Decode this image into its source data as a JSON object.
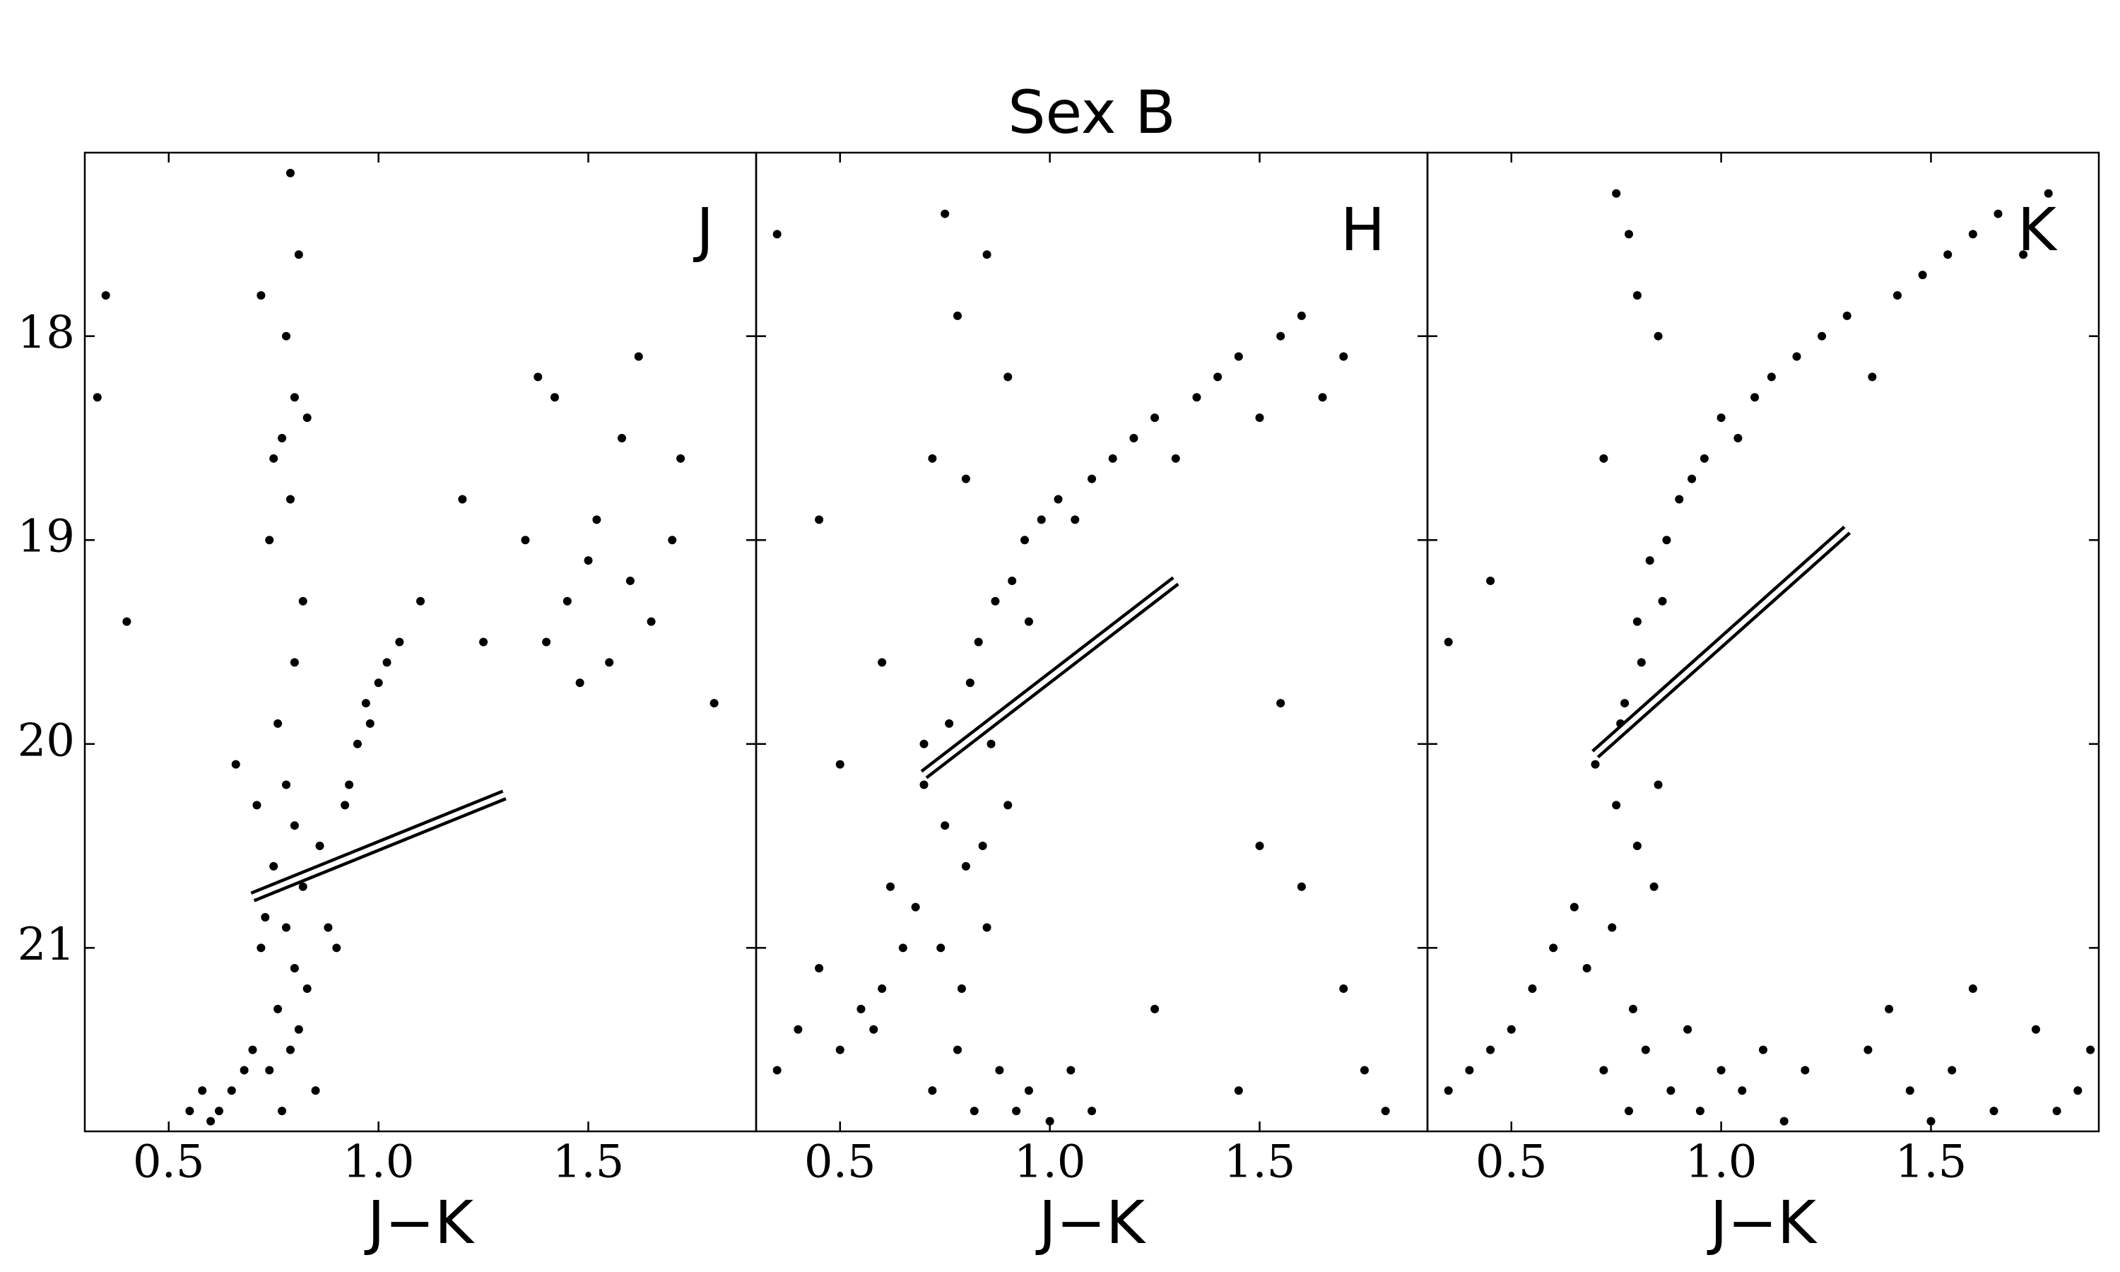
{
  "title": "Sex B",
  "chart_data": [
    {
      "type": "scatter",
      "label": "J",
      "xlabel": "J−K",
      "series": [
        {
          "color": "#000000",
          "x": [
            0.72,
            0.78,
            0.8,
            0.76,
            0.83,
            0.79,
            0.74,
            0.81,
            0.77,
            0.85,
            0.7,
            0.68,
            0.65,
            0.62,
            0.6,
            0.58,
            0.55,
            0.73,
            0.88,
            0.9,
            0.82,
            0.75,
            0.8,
            0.86,
            0.71,
            0.66,
            0.93,
            0.95,
            0.98,
            1.0,
            1.02,
            1.05,
            0.97,
            0.92,
            0.78,
            0.76,
            0.8,
            0.82,
            0.74,
            0.79,
            0.77,
            0.8,
            0.75,
            0.83,
            0.78,
            0.72,
            0.81,
            0.79,
            1.35,
            1.4,
            1.45,
            1.5,
            1.55,
            1.6,
            1.65,
            1.7,
            1.48,
            1.52,
            1.42,
            1.38,
            1.58,
            1.62,
            1.72,
            1.8,
            1.25,
            1.2,
            1.1,
            0.35,
            0.4,
            0.33
          ],
          "values": [
            21.0,
            20.9,
            21.1,
            21.3,
            21.2,
            21.5,
            21.6,
            21.4,
            21.8,
            21.7,
            21.5,
            21.6,
            21.7,
            21.8,
            21.85,
            21.7,
            21.8,
            20.85,
            20.9,
            21.0,
            20.7,
            20.6,
            20.4,
            20.5,
            20.3,
            20.1,
            20.2,
            20.0,
            19.9,
            19.7,
            19.6,
            19.5,
            19.8,
            20.3,
            20.2,
            19.9,
            19.6,
            19.3,
            19.0,
            18.8,
            18.5,
            18.3,
            18.6,
            18.4,
            18.0,
            17.8,
            17.6,
            17.2,
            19.0,
            19.5,
            19.3,
            19.1,
            19.6,
            19.2,
            19.4,
            19.0,
            19.7,
            18.9,
            18.3,
            18.2,
            18.5,
            18.1,
            18.6,
            19.8,
            19.5,
            18.8,
            19.3,
            17.8,
            19.4,
            18.3
          ]
        }
      ],
      "tip_line": {
        "x": [
          0.7,
          1.3
        ],
        "y": [
          20.75,
          20.25
        ]
      },
      "xlim": [
        0.3,
        1.9
      ],
      "ylim": [
        21.9,
        17.1
      ],
      "xticks": [
        0.5,
        {
          "value": 1.0,
          "label": "1.0"
        },
        1.5
      ],
      "yticks": [
        18,
        19,
        20,
        21
      ]
    },
    {
      "type": "scatter",
      "label": "H",
      "xlabel": "J−K",
      "series": [
        {
          "color": "#000000",
          "x": [
            0.7,
            0.75,
            0.8,
            0.85,
            0.65,
            0.6,
            0.55,
            0.5,
            0.45,
            0.4,
            0.35,
            0.72,
            0.78,
            0.82,
            0.88,
            0.92,
            0.95,
            1.0,
            1.05,
            1.1,
            0.68,
            0.74,
            0.79,
            0.84,
            0.9,
            0.62,
            0.58,
            0.76,
            0.81,
            0.86,
            0.83,
            0.87,
            0.91,
            0.94,
            0.98,
            1.02,
            1.06,
            1.1,
            1.15,
            1.2,
            1.25,
            1.3,
            1.35,
            1.4,
            1.45,
            1.5,
            1.55,
            1.6,
            1.65,
            1.7,
            0.8,
            0.78,
            0.75,
            0.85,
            0.9,
            0.72,
            0.95,
            1.5,
            1.7,
            1.8,
            1.45,
            1.6,
            1.25,
            0.35,
            0.45,
            1.55,
            1.75,
            0.7,
            0.6,
            0.5
          ],
          "values": [
            20.2,
            20.4,
            20.6,
            20.9,
            21.0,
            21.2,
            21.3,
            21.5,
            21.1,
            21.4,
            21.6,
            21.7,
            21.5,
            21.8,
            21.6,
            21.8,
            21.7,
            21.85,
            21.6,
            21.8,
            20.8,
            21.0,
            21.2,
            20.5,
            20.3,
            20.7,
            21.4,
            19.9,
            19.7,
            20.0,
            19.5,
            19.3,
            19.2,
            19.0,
            18.9,
            18.8,
            18.9,
            18.7,
            18.6,
            18.5,
            18.4,
            18.6,
            18.3,
            18.2,
            18.1,
            18.4,
            18.0,
            17.9,
            18.3,
            18.1,
            18.7,
            17.9,
            17.4,
            17.6,
            18.2,
            18.6,
            19.4,
            20.5,
            21.2,
            21.8,
            21.7,
            20.7,
            21.3,
            17.5,
            18.9,
            19.8,
            21.6,
            20.0,
            19.6,
            20.1
          ]
        }
      ],
      "tip_line": {
        "x": [
          0.7,
          1.3
        ],
        "y": [
          20.15,
          19.2
        ]
      },
      "xlim": [
        0.3,
        1.9
      ],
      "ylim": [
        21.9,
        17.1
      ],
      "xticks": [
        0.5,
        {
          "value": 1.0,
          "label": "1.0"
        },
        1.5
      ],
      "yticks": [
        18,
        19,
        20,
        21
      ]
    },
    {
      "type": "scatter",
      "label": "K",
      "xlabel": "J−K",
      "series": [
        {
          "color": "#000000",
          "x": [
            0.7,
            0.75,
            0.8,
            0.85,
            0.65,
            0.6,
            0.55,
            0.5,
            0.45,
            0.4,
            0.35,
            0.72,
            0.78,
            0.82,
            0.88,
            0.92,
            0.95,
            1.0,
            1.05,
            1.1,
            0.68,
            0.74,
            0.79,
            0.84,
            0.73,
            0.77,
            0.81,
            0.76,
            0.8,
            0.86,
            0.83,
            0.87,
            0.9,
            0.93,
            0.96,
            1.0,
            1.04,
            1.08,
            1.12,
            1.18,
            1.24,
            1.3,
            1.36,
            1.42,
            1.48,
            1.54,
            1.6,
            1.66,
            1.72,
            1.78,
            0.8,
            0.78,
            0.75,
            0.85,
            0.72,
            1.35,
            1.45,
            1.55,
            1.65,
            1.75,
            1.85,
            1.4,
            1.6,
            1.8,
            1.5,
            0.35,
            0.45,
            1.15,
            1.2,
            1.88
          ],
          "values": [
            20.1,
            20.3,
            20.5,
            20.2,
            20.8,
            21.0,
            21.2,
            21.4,
            21.5,
            21.6,
            21.7,
            21.6,
            21.8,
            21.5,
            21.7,
            21.4,
            21.8,
            21.6,
            21.7,
            21.5,
            21.1,
            20.9,
            21.3,
            20.7,
            20.0,
            19.8,
            19.6,
            19.9,
            19.4,
            19.3,
            19.1,
            19.0,
            18.8,
            18.7,
            18.6,
            18.4,
            18.5,
            18.3,
            18.2,
            18.1,
            18.0,
            17.9,
            18.2,
            17.8,
            17.7,
            17.6,
            17.5,
            17.4,
            17.6,
            17.3,
            17.8,
            17.5,
            17.3,
            18.0,
            18.6,
            21.5,
            21.7,
            21.6,
            21.8,
            21.4,
            21.7,
            21.3,
            21.2,
            21.8,
            21.85,
            19.5,
            19.2,
            21.85,
            21.6,
            21.5
          ]
        }
      ],
      "tip_line": {
        "x": [
          0.7,
          1.3
        ],
        "y": [
          20.05,
          18.95
        ]
      },
      "xlim": [
        0.3,
        1.9
      ],
      "ylim": [
        21.9,
        17.1
      ],
      "xticks": [
        0.5,
        {
          "value": 1.0,
          "label": "1.0"
        },
        1.5
      ],
      "yticks": [
        18,
        19,
        20,
        21
      ]
    }
  ]
}
